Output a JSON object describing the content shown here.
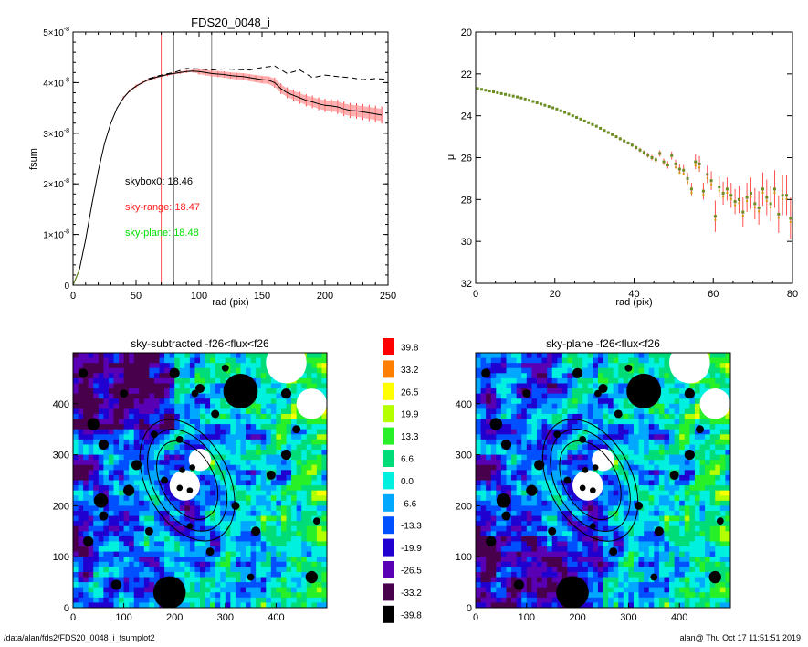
{
  "chart_data": [
    {
      "type": "line",
      "title": "FDS20_0048_i",
      "xlabel": "rad (pix)",
      "ylabel": "fsum",
      "xlim": [
        0,
        250
      ],
      "ylim": [
        0,
        5e-08
      ],
      "x_ticks": [
        "0",
        "50",
        "100",
        "150",
        "200",
        "250"
      ],
      "y_ticks": [
        {
          "mant": "0",
          "exp": ""
        },
        {
          "mant": "1×10",
          "exp": "-8"
        },
        {
          "mant": "2×10",
          "exp": "-8"
        },
        {
          "mant": "3×10",
          "exp": "-8"
        },
        {
          "mant": "4×10",
          "exp": "-8"
        },
        {
          "mant": "5×10",
          "exp": "-8"
        }
      ],
      "annotations": [
        {
          "text": "skybox0: 18.46",
          "color": "#000000"
        },
        {
          "text": "sky-range: 18.47",
          "color": "#ff2020"
        },
        {
          "text": "sky-plane: 18.48",
          "color": "#00e000"
        }
      ],
      "vlines": [
        {
          "x": 70,
          "color": "#ff5050"
        },
        {
          "x": 80,
          "color": "#808080"
        },
        {
          "x": 110,
          "color": "#808080"
        }
      ],
      "series": [
        {
          "style": "solid",
          "color": "#000000",
          "x": [
            0,
            5,
            10,
            15,
            20,
            25,
            30,
            35,
            40,
            45,
            50,
            55,
            60,
            65,
            70,
            75,
            80,
            85,
            90,
            95,
            100,
            105,
            110,
            115,
            120,
            125,
            130,
            135,
            140,
            145,
            150,
            155,
            160,
            165,
            170,
            175,
            180,
            185,
            190,
            195,
            200,
            205,
            210,
            215,
            220,
            225,
            230,
            235,
            240,
            245
          ],
          "y": [
            0,
            3e-09,
            9e-09,
            1.6e-08,
            2.25e-08,
            2.8e-08,
            3.2e-08,
            3.5e-08,
            3.7e-08,
            3.84e-08,
            3.93e-08,
            4e-08,
            4.06e-08,
            4.1e-08,
            4.13e-08,
            4.16e-08,
            4.18e-08,
            4.2e-08,
            4.22e-08,
            4.23e-08,
            4.22e-08,
            4.2e-08,
            4.18e-08,
            4.17e-08,
            4.16e-08,
            4.14e-08,
            4.13e-08,
            4.12e-08,
            4.1e-08,
            4.08e-08,
            4.06e-08,
            4.05e-08,
            4e-08,
            3.88e-08,
            3.8e-08,
            3.75e-08,
            3.7e-08,
            3.65e-08,
            3.62e-08,
            3.58e-08,
            3.55e-08,
            3.54e-08,
            3.52e-08,
            3.48e-08,
            3.45e-08,
            3.44e-08,
            3.42e-08,
            3.4e-08,
            3.38e-08,
            3.36e-08
          ]
        },
        {
          "style": "dashed",
          "color": "#000000",
          "x": [
            60,
            70,
            80,
            90,
            100,
            110,
            120,
            130,
            140,
            150,
            160,
            170,
            180,
            190,
            200,
            210,
            220,
            230,
            240,
            247
          ],
          "y": [
            4.08e-08,
            4.15e-08,
            4.2e-08,
            4.28e-08,
            4.27e-08,
            4.25e-08,
            4.27e-08,
            4.26e-08,
            4.25e-08,
            4.3e-08,
            4.33e-08,
            4.18e-08,
            4.25e-08,
            4.1e-08,
            4.15e-08,
            4.12e-08,
            4.1e-08,
            4.06e-08,
            4.08e-08,
            4.07e-08
          ]
        }
      ]
    },
    {
      "type": "scatter",
      "title": "",
      "xlabel": "rad (pix)",
      "ylabel": "μ",
      "xlim": [
        0,
        80
      ],
      "ylim": [
        32,
        20
      ],
      "x_ticks": [
        "0",
        "20",
        "40",
        "60",
        "80"
      ],
      "y_ticks": [
        "20",
        "22",
        "24",
        "26",
        "28",
        "30",
        "32"
      ],
      "x": [
        0.5,
        1.5,
        2.5,
        3.5,
        4.5,
        5.5,
        6.5,
        7.5,
        8.5,
        9.5,
        10.5,
        11.5,
        12.5,
        13.5,
        14.5,
        15.5,
        16.5,
        17.5,
        18.5,
        19.5,
        20.5,
        21.5,
        22.5,
        23.5,
        24.5,
        25.5,
        26.5,
        27.5,
        28.5,
        29.5,
        30.5,
        31.5,
        32.5,
        33.5,
        34.5,
        35.5,
        36.5,
        37.5,
        38.5,
        39.5,
        40.5,
        41.5,
        42.5,
        43.5,
        44.5,
        45.5,
        46.5,
        47.5,
        48.5,
        49.5,
        50.5,
        51.5,
        52.5,
        53.5,
        54.5,
        55.5,
        56.5,
        57.5,
        58.5,
        59.5,
        60.5,
        61.5,
        62.5,
        63.5,
        64.5,
        65.5,
        66.5,
        67.5,
        68.5,
        69.5,
        70.5,
        71.5,
        72.5,
        73.5,
        74.5,
        75.5,
        76.5,
        77.5,
        78.5,
        79.5
      ],
      "y": [
        22.7,
        22.74,
        22.78,
        22.82,
        22.86,
        22.9,
        22.94,
        22.98,
        23.02,
        23.06,
        23.1,
        23.15,
        23.2,
        23.26,
        23.32,
        23.38,
        23.44,
        23.5,
        23.56,
        23.62,
        23.68,
        23.76,
        23.84,
        23.92,
        24.0,
        24.08,
        24.16,
        24.25,
        24.33,
        24.42,
        24.5,
        24.6,
        24.7,
        24.8,
        24.9,
        25.0,
        25.1,
        25.2,
        25.3,
        25.4,
        25.52,
        25.64,
        25.76,
        25.88,
        26.0,
        26.1,
        25.8,
        26.2,
        26.35,
        25.9,
        26.3,
        26.55,
        26.6,
        27.0,
        27.5,
        26.2,
        26.3,
        27.6,
        26.8,
        27.1,
        28.8,
        27.4,
        27.7,
        27.5,
        27.8,
        28.1,
        28.0,
        28.6,
        27.9,
        27.7,
        28.2,
        28.4,
        27.5,
        27.9,
        28.2,
        27.5,
        28.7,
        27.8,
        27.8,
        28.9
      ],
      "err": [
        0.02,
        0.02,
        0.02,
        0.02,
        0.02,
        0.02,
        0.02,
        0.02,
        0.02,
        0.03,
        0.03,
        0.03,
        0.03,
        0.03,
        0.03,
        0.04,
        0.04,
        0.04,
        0.04,
        0.05,
        0.05,
        0.05,
        0.06,
        0.06,
        0.06,
        0.07,
        0.07,
        0.08,
        0.08,
        0.09,
        0.1,
        0.1,
        0.11,
        0.12,
        0.12,
        0.13,
        0.14,
        0.15,
        0.16,
        0.17,
        0.18,
        0.2,
        0.22,
        0.24,
        0.25,
        0.27,
        0.3,
        0.32,
        0.35,
        0.38,
        0.4,
        0.45,
        0.5,
        0.55,
        0.6,
        0.7,
        0.75,
        0.8,
        0.85,
        0.9,
        1.5,
        1.0,
        1.1,
        1.1,
        1.2,
        1.2,
        1.3,
        1.4,
        1.4,
        1.5,
        1.5,
        1.6,
        1.6,
        1.7,
        1.7,
        1.8,
        1.8,
        1.9,
        1.9,
        2.0
      ],
      "mean_color": "#6b8e23",
      "err_color": "#ff5050"
    },
    {
      "type": "heatmap",
      "title": "sky-subtracted -f26<flux<f26",
      "xlim": [
        0,
        500
      ],
      "ylim": [
        0,
        500
      ],
      "x_ticks": [
        "0",
        "100",
        "200",
        "300",
        "400"
      ],
      "y_ticks": [
        "0",
        "100",
        "200",
        "300",
        "400"
      ]
    },
    {
      "type": "heatmap",
      "title": "sky-plane -f26<flux<f26",
      "xlim": [
        0,
        500
      ],
      "ylim": [
        0,
        500
      ],
      "x_ticks": [
        "0",
        "100",
        "200",
        "300",
        "400"
      ],
      "y_ticks": [
        "0",
        "100",
        "200",
        "300",
        "400"
      ]
    }
  ],
  "colorbar": {
    "labels": [
      "39.8",
      "33.2",
      "26.5",
      "19.9",
      "13.3",
      "6.6",
      "0.0",
      "-6.6",
      "-13.3",
      "-19.9",
      "-26.5",
      "-33.2",
      "-39.8"
    ],
    "colors": [
      "#ff0000",
      "#ff8000",
      "#ffff00",
      "#b4ff00",
      "#28f028",
      "#00dc78",
      "#00f0e0",
      "#00a8ff",
      "#0050ff",
      "#2000d0",
      "#5a00b4",
      "#48004c",
      "#000000"
    ]
  },
  "footer": {
    "left": "/data/alan/fds2/FDS20_0048_i_fsumplot2",
    "right": "alan@  Thu Oct 17 11:51:51 2019"
  }
}
